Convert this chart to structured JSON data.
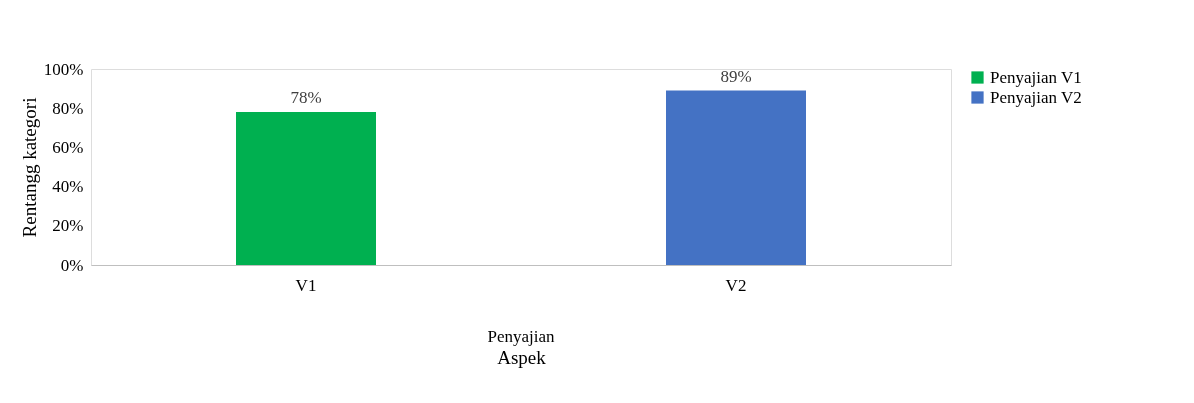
{
  "chart_data": {
    "type": "bar",
    "categories": [
      "V1",
      "V2"
    ],
    "series": [
      {
        "name": "Penyajian V1",
        "color": "#00b050",
        "values": [
          78,
          null
        ],
        "value_labels": [
          "78%",
          null
        ]
      },
      {
        "name": "Penyajian V2",
        "color": "#4472c4",
        "values": [
          null,
          89
        ],
        "value_labels": [
          null,
          "89%"
        ]
      }
    ],
    "ylim": [
      0,
      100
    ],
    "yticks": [
      {
        "value": 0,
        "label": "0%"
      },
      {
        "value": 20,
        "label": "20%"
      },
      {
        "value": 40,
        "label": "40%"
      },
      {
        "value": 60,
        "label": "60%"
      },
      {
        "value": 80,
        "label": "80%"
      },
      {
        "value": 100,
        "label": "100%"
      }
    ],
    "ylabel": "Rentangg kategori",
    "xlabel": "Aspek",
    "annotations": [
      "Penyajian"
    ],
    "grid": false,
    "legend": "right"
  }
}
